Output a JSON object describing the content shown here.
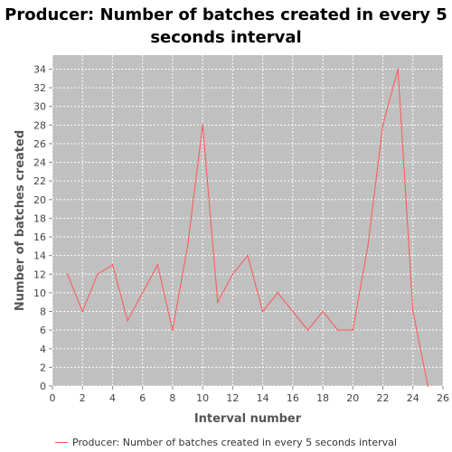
{
  "chart_data": {
    "type": "line",
    "title": "Producer: Number of batches created in every 5 seconds interval",
    "xlabel": "Interval number",
    "ylabel": "Number of batches created",
    "xlim": [
      0,
      26
    ],
    "ylim": [
      0,
      35.5
    ],
    "x_ticks": [
      0,
      2,
      4,
      6,
      8,
      10,
      12,
      14,
      16,
      18,
      20,
      22,
      24,
      26
    ],
    "y_ticks": [
      0,
      2,
      4,
      6,
      8,
      10,
      12,
      14,
      16,
      18,
      20,
      22,
      24,
      26,
      28,
      30,
      32,
      34
    ],
    "grid": true,
    "legend_position": "bottom",
    "colors": {
      "plot_background": "#c0c0c0",
      "gridline": "#ffffff",
      "series_line": "#ff5555"
    },
    "series": [
      {
        "name": "Producer: Number of batches created in every 5 seconds interval",
        "x": [
          1,
          2,
          3,
          4,
          5,
          6,
          7,
          8,
          9,
          10,
          11,
          12,
          13,
          14,
          15,
          16,
          17,
          18,
          19,
          20,
          21,
          22,
          23,
          24,
          25
        ],
        "y": [
          12,
          8,
          12,
          13,
          7,
          10,
          13,
          6,
          15,
          28,
          9,
          12,
          14,
          8,
          10,
          8,
          6,
          8,
          6,
          6,
          15,
          28,
          34,
          8,
          0
        ]
      }
    ]
  }
}
